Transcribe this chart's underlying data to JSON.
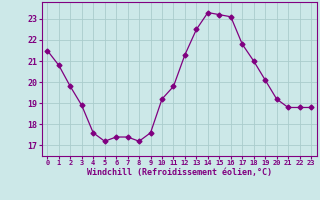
{
  "x": [
    0,
    1,
    2,
    3,
    4,
    5,
    6,
    7,
    8,
    9,
    10,
    11,
    12,
    13,
    14,
    15,
    16,
    17,
    18,
    19,
    20,
    21,
    22,
    23
  ],
  "y": [
    21.5,
    20.8,
    19.8,
    18.9,
    17.6,
    17.2,
    17.4,
    17.4,
    17.2,
    17.6,
    19.2,
    19.8,
    21.3,
    22.5,
    23.3,
    23.2,
    23.1,
    21.8,
    21.0,
    20.1,
    19.2,
    18.8,
    18.8,
    18.8
  ],
  "line_color": "#800080",
  "marker": "D",
  "marker_size": 2.5,
  "bg_color": "#cce8e8",
  "grid_color": "#aacccc",
  "xlabel": "Windchill (Refroidissement éolien,°C)",
  "ylim": [
    16.5,
    23.8
  ],
  "xlim": [
    -0.5,
    23.5
  ],
  "yticks": [
    17,
    18,
    19,
    20,
    21,
    22,
    23
  ],
  "xticks": [
    0,
    1,
    2,
    3,
    4,
    5,
    6,
    7,
    8,
    9,
    10,
    11,
    12,
    13,
    14,
    15,
    16,
    17,
    18,
    19,
    20,
    21,
    22,
    23
  ],
  "label_color": "#800080",
  "tick_color": "#800080",
  "spine_color": "#800080"
}
